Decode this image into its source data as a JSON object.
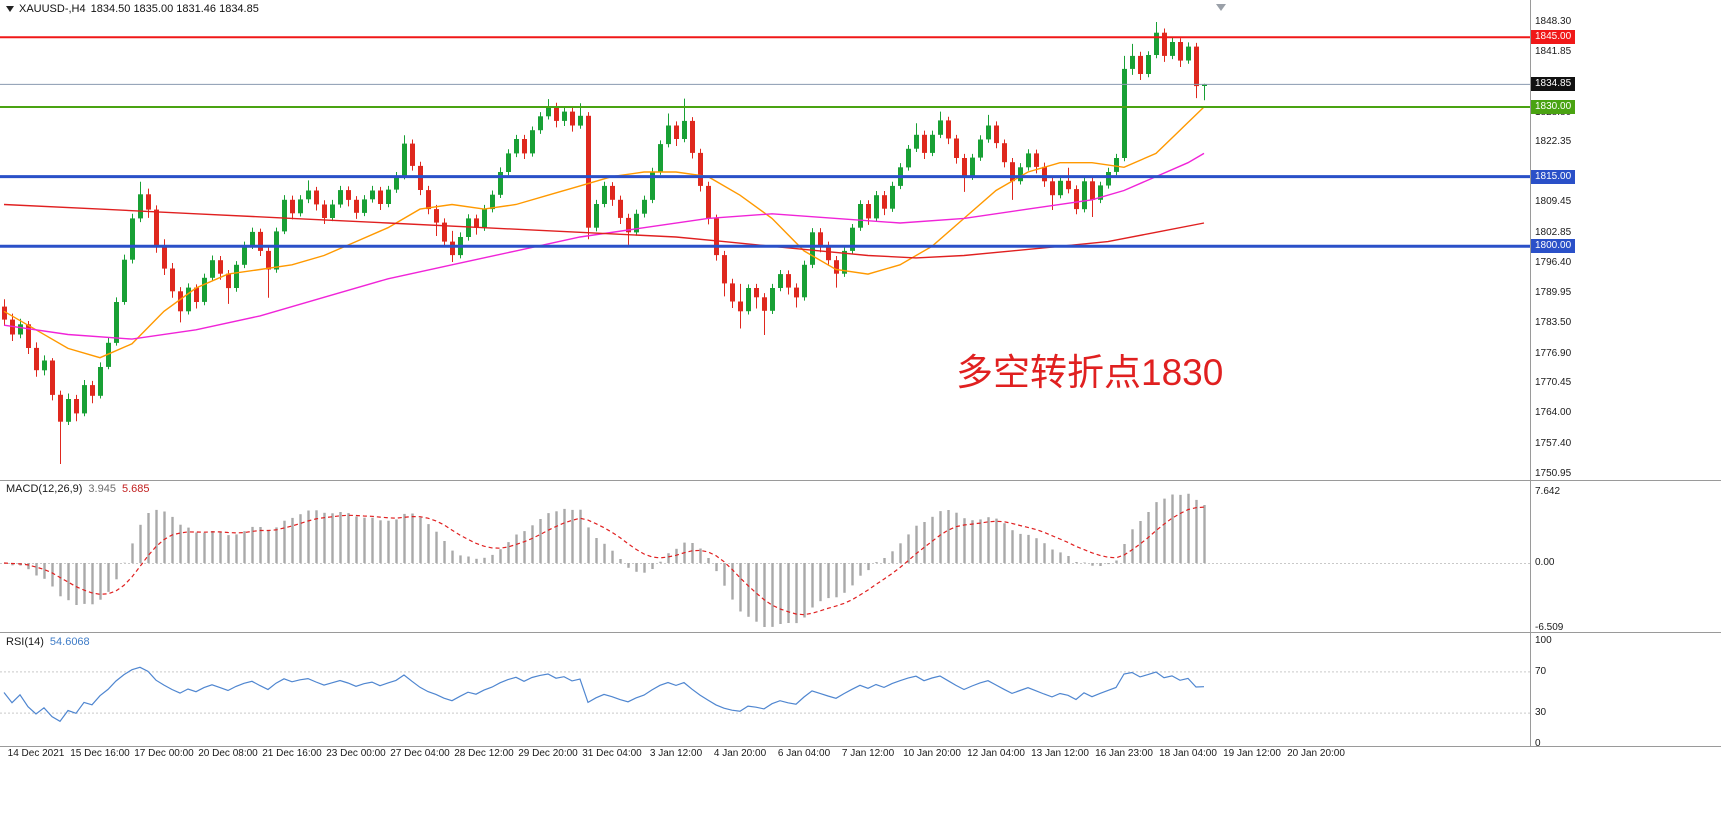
{
  "title": {
    "symbol": "XAUUSD-,H4",
    "ohlc": "1834.50 1835.00 1831.46 1834.85"
  },
  "annotation": {
    "text": "多空转折点1830",
    "color": "#e02020"
  },
  "chart_data": {
    "type": "candlestick",
    "symbol": "XAUUSD",
    "timeframe": "H4",
    "colors": {
      "up": "#18a035",
      "down": "#df281e"
    },
    "candles": [
      [
        1787.0,
        1788.6,
        1782.9,
        1784.2
      ],
      [
        1784.2,
        1785.5,
        1779.6,
        1781.0
      ],
      [
        1781.0,
        1784.4,
        1780.2,
        1783.2
      ],
      [
        1783.2,
        1783.9,
        1776.8,
        1778.1
      ],
      [
        1778.1,
        1779.3,
        1771.9,
        1773.3
      ],
      [
        1773.3,
        1776.5,
        1772.2,
        1775.4
      ],
      [
        1775.4,
        1775.9,
        1766.8,
        1768.0
      ],
      [
        1768.0,
        1768.9,
        1753.1,
        1762.2
      ],
      [
        1762.2,
        1768.3,
        1761.5,
        1767.1
      ],
      [
        1767.1,
        1768.0,
        1762.3,
        1764.0
      ],
      [
        1764.0,
        1771.2,
        1763.4,
        1770.1
      ],
      [
        1770.1,
        1771.0,
        1766.2,
        1767.8
      ],
      [
        1767.8,
        1775.0,
        1767.2,
        1774.0
      ],
      [
        1774.0,
        1780.3,
        1773.5,
        1779.2
      ],
      [
        1779.2,
        1789.0,
        1778.6,
        1788.0
      ],
      [
        1788.0,
        1798.2,
        1787.4,
        1797.1
      ],
      [
        1797.1,
        1807.0,
        1796.3,
        1806.0
      ],
      [
        1806.0,
        1813.9,
        1805.2,
        1811.2
      ],
      [
        1811.2,
        1812.4,
        1806.1,
        1807.9
      ],
      [
        1807.9,
        1808.8,
        1798.6,
        1800.1
      ],
      [
        1800.1,
        1801.5,
        1793.8,
        1795.2
      ],
      [
        1795.2,
        1796.4,
        1788.9,
        1790.3
      ],
      [
        1790.3,
        1791.2,
        1783.6,
        1786.0
      ],
      [
        1786.0,
        1792.0,
        1785.3,
        1791.1
      ],
      [
        1791.1,
        1791.8,
        1786.6,
        1788.0
      ],
      [
        1788.0,
        1794.1,
        1787.3,
        1793.2
      ],
      [
        1793.2,
        1798.0,
        1792.5,
        1797.0
      ],
      [
        1797.0,
        1797.9,
        1792.8,
        1794.1
      ],
      [
        1794.1,
        1794.9,
        1787.6,
        1791.0
      ],
      [
        1791.0,
        1796.8,
        1790.2,
        1796.0
      ],
      [
        1796.0,
        1801.0,
        1795.3,
        1800.2
      ],
      [
        1800.2,
        1804.0,
        1799.4,
        1803.1
      ],
      [
        1803.1,
        1803.8,
        1797.9,
        1799.0
      ],
      [
        1799.0,
        1799.8,
        1788.9,
        1795.0
      ],
      [
        1795.0,
        1804.0,
        1794.3,
        1803.2
      ],
      [
        1803.2,
        1811.0,
        1802.6,
        1810.0
      ],
      [
        1810.0,
        1810.9,
        1805.8,
        1807.1
      ],
      [
        1807.1,
        1811.0,
        1806.4,
        1810.1
      ],
      [
        1810.1,
        1814.2,
        1809.3,
        1812.0
      ],
      [
        1812.0,
        1812.8,
        1807.7,
        1809.0
      ],
      [
        1809.0,
        1809.9,
        1804.8,
        1806.1
      ],
      [
        1806.1,
        1810.0,
        1805.4,
        1809.0
      ],
      [
        1809.0,
        1813.0,
        1808.3,
        1812.1
      ],
      [
        1812.1,
        1812.9,
        1808.6,
        1810.0
      ],
      [
        1810.0,
        1810.8,
        1805.9,
        1807.2
      ],
      [
        1807.2,
        1811.0,
        1806.5,
        1810.1
      ],
      [
        1810.1,
        1813.0,
        1809.4,
        1812.0
      ],
      [
        1812.0,
        1812.8,
        1807.8,
        1809.1
      ],
      [
        1809.1,
        1813.0,
        1808.4,
        1812.2
      ],
      [
        1812.2,
        1816.0,
        1811.5,
        1815.0
      ],
      [
        1815.0,
        1823.9,
        1814.4,
        1822.1
      ],
      [
        1822.1,
        1823.0,
        1816.3,
        1817.3
      ],
      [
        1817.3,
        1818.2,
        1811.0,
        1812.1
      ],
      [
        1812.1,
        1813.0,
        1806.9,
        1808.0
      ],
      [
        1808.0,
        1808.9,
        1802.2,
        1805.1
      ],
      [
        1805.1,
        1806.0,
        1799.8,
        1801.0
      ],
      [
        1801.0,
        1803.3,
        1796.6,
        1798.1
      ],
      [
        1798.1,
        1803.0,
        1797.4,
        1802.0
      ],
      [
        1802.0,
        1806.9,
        1801.2,
        1806.0
      ],
      [
        1806.0,
        1806.8,
        1802.5,
        1804.0
      ],
      [
        1804.0,
        1808.9,
        1803.3,
        1808.0
      ],
      [
        1808.0,
        1812.0,
        1807.3,
        1811.1
      ],
      [
        1811.1,
        1817.0,
        1810.4,
        1816.0
      ],
      [
        1816.0,
        1820.9,
        1815.3,
        1820.0
      ],
      [
        1820.0,
        1824.0,
        1819.2,
        1823.1
      ],
      [
        1823.1,
        1824.0,
        1818.8,
        1820.0
      ],
      [
        1820.0,
        1825.8,
        1819.3,
        1825.0
      ],
      [
        1825.0,
        1828.9,
        1824.2,
        1828.0
      ],
      [
        1828.0,
        1831.7,
        1827.3,
        1830.0
      ],
      [
        1830.0,
        1830.9,
        1825.6,
        1827.0
      ],
      [
        1827.0,
        1829.9,
        1825.9,
        1829.0
      ],
      [
        1829.0,
        1829.8,
        1824.7,
        1826.0
      ],
      [
        1826.0,
        1830.8,
        1825.3,
        1828.1
      ],
      [
        1828.1,
        1828.9,
        1801.5,
        1804.0
      ],
      [
        1804.0,
        1810.0,
        1803.2,
        1809.1
      ],
      [
        1809.1,
        1813.9,
        1808.4,
        1813.0
      ],
      [
        1813.0,
        1813.8,
        1808.7,
        1810.0
      ],
      [
        1810.0,
        1810.9,
        1804.8,
        1806.1
      ],
      [
        1806.1,
        1807.0,
        1800.3,
        1803.0
      ],
      [
        1803.0,
        1807.9,
        1802.3,
        1807.0
      ],
      [
        1807.0,
        1810.9,
        1806.2,
        1810.0
      ],
      [
        1810.0,
        1816.9,
        1809.3,
        1816.0
      ],
      [
        1816.0,
        1822.8,
        1815.4,
        1822.0
      ],
      [
        1822.0,
        1828.6,
        1821.3,
        1826.0
      ],
      [
        1826.0,
        1826.9,
        1821.6,
        1823.1
      ],
      [
        1823.1,
        1831.8,
        1822.4,
        1827.0
      ],
      [
        1827.0,
        1827.8,
        1818.9,
        1820.1
      ],
      [
        1820.1,
        1821.0,
        1811.8,
        1813.0
      ],
      [
        1813.0,
        1813.9,
        1804.7,
        1806.0
      ],
      [
        1806.0,
        1806.8,
        1796.9,
        1798.1
      ],
      [
        1798.1,
        1799.0,
        1789.2,
        1792.0
      ],
      [
        1792.0,
        1793.0,
        1786.7,
        1788.1
      ],
      [
        1788.1,
        1791.9,
        1782.3,
        1786.0
      ],
      [
        1786.0,
        1791.8,
        1785.3,
        1791.0
      ],
      [
        1791.0,
        1791.9,
        1786.6,
        1789.0
      ],
      [
        1789.0,
        1789.9,
        1780.9,
        1786.1
      ],
      [
        1786.1,
        1791.9,
        1785.4,
        1791.0
      ],
      [
        1791.0,
        1794.9,
        1790.3,
        1794.0
      ],
      [
        1794.0,
        1794.8,
        1789.6,
        1791.1
      ],
      [
        1791.1,
        1792.0,
        1786.8,
        1789.0
      ],
      [
        1789.0,
        1796.9,
        1788.3,
        1796.0
      ],
      [
        1796.0,
        1803.9,
        1795.3,
        1803.0
      ],
      [
        1803.0,
        1803.9,
        1798.7,
        1800.1
      ],
      [
        1800.1,
        1801.0,
        1795.8,
        1797.0
      ],
      [
        1797.0,
        1797.9,
        1791.1,
        1794.1
      ],
      [
        1794.1,
        1799.9,
        1793.4,
        1799.0
      ],
      [
        1799.0,
        1804.8,
        1798.3,
        1804.0
      ],
      [
        1804.0,
        1809.9,
        1803.3,
        1809.1
      ],
      [
        1809.1,
        1809.9,
        1804.6,
        1806.0
      ],
      [
        1806.0,
        1811.9,
        1805.3,
        1811.0
      ],
      [
        1811.0,
        1811.9,
        1806.7,
        1808.1
      ],
      [
        1808.1,
        1813.9,
        1807.4,
        1813.0
      ],
      [
        1813.0,
        1817.9,
        1812.3,
        1817.0
      ],
      [
        1817.0,
        1821.8,
        1816.3,
        1821.0
      ],
      [
        1821.0,
        1826.5,
        1820.3,
        1824.0
      ],
      [
        1824.0,
        1824.9,
        1818.8,
        1820.1
      ],
      [
        1820.1,
        1824.9,
        1819.4,
        1824.0
      ],
      [
        1824.0,
        1829.0,
        1823.3,
        1827.1
      ],
      [
        1827.1,
        1827.9,
        1822.0,
        1823.2
      ],
      [
        1823.2,
        1824.0,
        1817.8,
        1819.0
      ],
      [
        1819.0,
        1819.9,
        1811.7,
        1815.0
      ],
      [
        1815.0,
        1819.9,
        1814.3,
        1819.1
      ],
      [
        1819.1,
        1823.9,
        1818.4,
        1823.0
      ],
      [
        1823.0,
        1828.3,
        1822.3,
        1826.0
      ],
      [
        1826.0,
        1826.9,
        1821.1,
        1822.2
      ],
      [
        1822.2,
        1823.0,
        1817.0,
        1818.1
      ],
      [
        1818.1,
        1819.0,
        1810.0,
        1814.0
      ],
      [
        1814.0,
        1817.9,
        1813.3,
        1817.0
      ],
      [
        1817.0,
        1820.9,
        1816.3,
        1820.0
      ],
      [
        1820.0,
        1820.8,
        1815.7,
        1817.1
      ],
      [
        1817.1,
        1818.0,
        1812.8,
        1814.0
      ],
      [
        1814.0,
        1814.9,
        1807.8,
        1811.0
      ],
      [
        1811.0,
        1814.9,
        1810.3,
        1814.1
      ],
      [
        1814.1,
        1816.9,
        1811.4,
        1812.3
      ],
      [
        1812.3,
        1813.1,
        1806.9,
        1808.0
      ],
      [
        1808.0,
        1814.8,
        1807.3,
        1814.0
      ],
      [
        1814.0,
        1814.9,
        1806.3,
        1810.0
      ],
      [
        1810.0,
        1813.9,
        1809.3,
        1813.1
      ],
      [
        1813.1,
        1816.9,
        1812.4,
        1816.0
      ],
      [
        1816.0,
        1819.9,
        1815.3,
        1819.0
      ],
      [
        1819.0,
        1841.0,
        1818.3,
        1838.2
      ],
      [
        1838.2,
        1843.6,
        1836.9,
        1841.0
      ],
      [
        1841.0,
        1841.9,
        1835.8,
        1837.1
      ],
      [
        1837.1,
        1842.0,
        1836.4,
        1841.2
      ],
      [
        1841.2,
        1848.3,
        1840.5,
        1846.0
      ],
      [
        1846.0,
        1846.9,
        1839.7,
        1841.0
      ],
      [
        1841.0,
        1844.9,
        1840.3,
        1844.0
      ],
      [
        1844.0,
        1844.8,
        1838.6,
        1840.0
      ],
      [
        1840.0,
        1843.9,
        1839.3,
        1843.0
      ],
      [
        1843.0,
        1843.8,
        1831.9,
        1834.5
      ],
      [
        1834.5,
        1835.0,
        1831.46,
        1834.85
      ]
    ],
    "moving_averages": [
      {
        "name": "ma-fast-orange",
        "color": "#ff9900",
        "points": [
          [
            0,
            1786
          ],
          [
            4,
            1782
          ],
          [
            8,
            1778
          ],
          [
            12,
            1776
          ],
          [
            16,
            1779
          ],
          [
            20,
            1786
          ],
          [
            24,
            1791
          ],
          [
            28,
            1794
          ],
          [
            32,
            1795
          ],
          [
            36,
            1796
          ],
          [
            40,
            1798
          ],
          [
            44,
            1801
          ],
          [
            48,
            1804
          ],
          [
            52,
            1808
          ],
          [
            56,
            1809
          ],
          [
            60,
            1808
          ],
          [
            64,
            1809
          ],
          [
            68,
            1811
          ],
          [
            72,
            1813
          ],
          [
            76,
            1815
          ],
          [
            80,
            1816
          ],
          [
            84,
            1816
          ],
          [
            88,
            1815
          ],
          [
            92,
            1811
          ],
          [
            96,
            1806
          ],
          [
            100,
            1799
          ],
          [
            104,
            1795
          ],
          [
            108,
            1794
          ],
          [
            112,
            1796
          ],
          [
            116,
            1800
          ],
          [
            120,
            1806
          ],
          [
            124,
            1812
          ],
          [
            128,
            1816
          ],
          [
            132,
            1818
          ],
          [
            136,
            1818
          ],
          [
            140,
            1817
          ],
          [
            144,
            1820
          ],
          [
            147,
            1825
          ],
          [
            150,
            1830
          ]
        ]
      },
      {
        "name": "ma-mid-magenta",
        "color": "#f024d8",
        "points": [
          [
            0,
            1783
          ],
          [
            8,
            1781
          ],
          [
            16,
            1780
          ],
          [
            24,
            1782
          ],
          [
            32,
            1785
          ],
          [
            40,
            1789
          ],
          [
            48,
            1793
          ],
          [
            56,
            1796
          ],
          [
            64,
            1799
          ],
          [
            72,
            1802
          ],
          [
            80,
            1804
          ],
          [
            88,
            1806
          ],
          [
            96,
            1807
          ],
          [
            104,
            1806
          ],
          [
            112,
            1805
          ],
          [
            120,
            1806
          ],
          [
            128,
            1808
          ],
          [
            136,
            1810
          ],
          [
            140,
            1812
          ],
          [
            144,
            1815
          ],
          [
            148,
            1818
          ],
          [
            150,
            1820
          ]
        ]
      },
      {
        "name": "ma-slow-red",
        "color": "#e02020",
        "points": [
          [
            0,
            1809
          ],
          [
            12,
            1808
          ],
          [
            24,
            1807
          ],
          [
            36,
            1806
          ],
          [
            48,
            1805
          ],
          [
            60,
            1804
          ],
          [
            72,
            1803
          ],
          [
            84,
            1802
          ],
          [
            90,
            1801
          ],
          [
            96,
            1800
          ],
          [
            102,
            1799
          ],
          [
            108,
            1798
          ],
          [
            114,
            1797.5
          ],
          [
            120,
            1798
          ],
          [
            126,
            1799
          ],
          [
            132,
            1800
          ],
          [
            138,
            1801
          ],
          [
            144,
            1803
          ],
          [
            150,
            1805
          ]
        ]
      }
    ],
    "levels": [
      {
        "price": 1845.0,
        "label": "1845.00",
        "color": "#f01818",
        "width": 2
      },
      {
        "price": 1830.0,
        "label": "1830.00",
        "color": "#4aa312",
        "width": 2
      },
      {
        "price": 1815.0,
        "label": "1815.00",
        "color": "#2a50c8",
        "width": 3
      },
      {
        "price": 1800.0,
        "label": "1800.00",
        "color": "#2a50c8",
        "width": 3
      }
    ],
    "current_price": {
      "price": 1834.85,
      "label": "1834.85",
      "badge_color": "#111111",
      "line_color": "#8a9ab0"
    },
    "price_axis": {
      "ticks": [
        "1848.30",
        "1841.85",
        "1828.80",
        "1822.35",
        "1809.45",
        "1802.85",
        "1796.40",
        "1789.95",
        "1783.50",
        "1776.90",
        "1770.45",
        "1764.00",
        "1757.40",
        "1750.95"
      ]
    },
    "date_axis": [
      "14 Dec 2021",
      "15 Dec 16:00",
      "17 Dec 00:00",
      "20 Dec 08:00",
      "21 Dec 16:00",
      "23 Dec 00:00",
      "27 Dec 04:00",
      "28 Dec 12:00",
      "29 Dec 20:00",
      "31 Dec 04:00",
      "3 Jan 12:00",
      "4 Jan 20:00",
      "6 Jan 04:00",
      "7 Jan 12:00",
      "10 Jan 20:00",
      "12 Jan 04:00",
      "13 Jan 12:00",
      "16 Jan 23:00",
      "18 Jan 04:00",
      "19 Jan 12:00",
      "20 Jan 20:00"
    ],
    "macd": {
      "label": "MACD(12,26,9)",
      "value_main": "3.945",
      "value_signal": "5.685",
      "axis": [
        "7.642",
        "0.00",
        "-6.509"
      ],
      "histogram_color": "#a9a9a9",
      "signal_color": "#e02020"
    },
    "rsi": {
      "label": "RSI(14)",
      "value": "54.6068",
      "axis": [
        "100",
        "70",
        "30",
        "0"
      ],
      "line_color": "#4f86d0",
      "levels": [
        70,
        30
      ]
    }
  }
}
